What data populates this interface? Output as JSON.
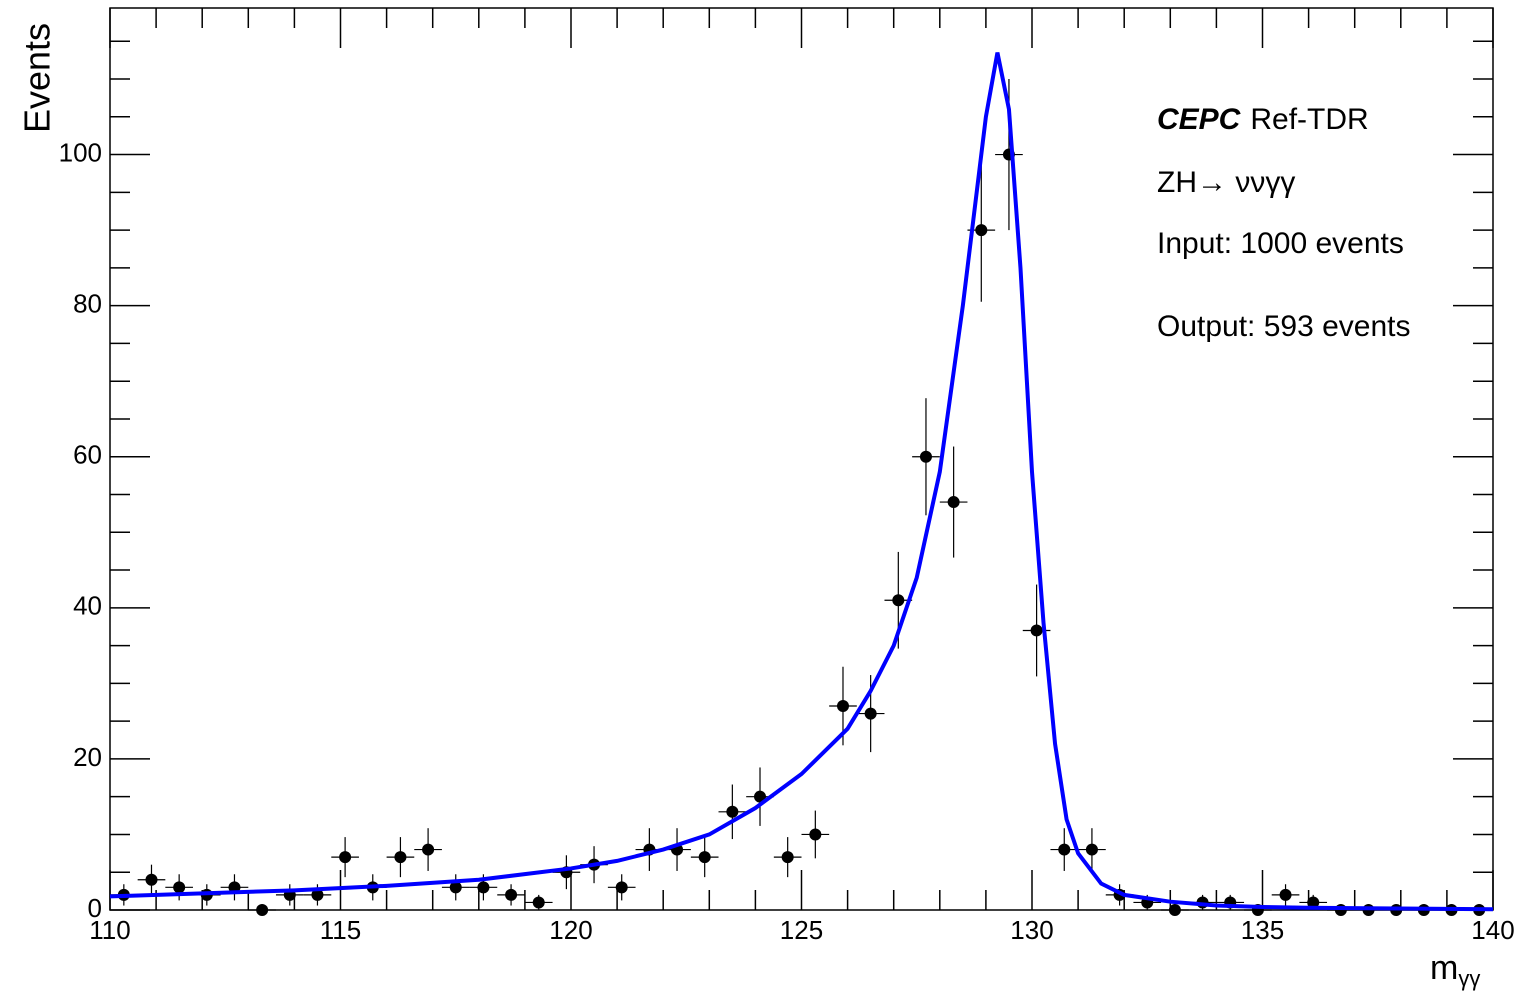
{
  "chart_data": {
    "type": "scatter",
    "ylabel": "Events",
    "xlabel": "m",
    "xlabel_sub": "γγ",
    "annotations": [
      {
        "bold": "CEPC",
        "text": "Ref-TDR"
      },
      {
        "text": "ZH→ ννγγ"
      },
      {
        "text": "Input: 1000 events"
      },
      {
        "text": "Output: 593 events"
      }
    ],
    "xlim": [
      110,
      140
    ],
    "ylim": [
      0,
      119.4
    ],
    "xticks": [
      110,
      115,
      120,
      125,
      130,
      135,
      140
    ],
    "xminorticks": [
      111,
      112,
      113,
      114,
      116,
      117,
      118,
      119,
      121,
      122,
      123,
      124,
      126,
      127,
      128,
      129,
      131,
      132,
      133,
      134,
      136,
      137,
      138,
      139
    ],
    "yticks": [
      0,
      20,
      40,
      60,
      80,
      100
    ],
    "yminorticks": [
      5,
      10,
      15,
      25,
      30,
      35,
      45,
      50,
      55,
      65,
      70,
      75,
      85,
      90,
      95,
      105,
      110,
      115
    ],
    "series": [
      {
        "type": "errorbar",
        "color": "#000000",
        "xerr": 0.3,
        "x": [
          110.3,
          110.9,
          111.5,
          112.1,
          112.7,
          113.3,
          113.9,
          114.5,
          115.1,
          115.7,
          116.3,
          116.9,
          117.5,
          118.1,
          118.7,
          119.3,
          119.9,
          120.5,
          121.1,
          121.7,
          122.3,
          122.9,
          123.5,
          124.1,
          124.7,
          125.3,
          125.9,
          126.5,
          127.1,
          127.7,
          128.3,
          128.9,
          129.5,
          130.1,
          130.7,
          131.3,
          131.9,
          132.5,
          133.1,
          133.7,
          134.3,
          134.9,
          135.5,
          136.1,
          136.7,
          137.3,
          137.9,
          138.5,
          139.1,
          139.7
        ],
        "values": [
          2,
          4,
          3,
          2,
          3,
          0,
          2,
          2,
          7,
          3,
          7,
          8,
          3,
          3,
          2,
          1,
          5,
          6,
          3,
          8,
          8,
          7,
          13,
          15,
          7,
          10,
          27,
          26,
          41,
          60,
          54,
          90,
          100,
          37,
          8,
          8,
          2,
          1,
          0,
          1,
          1,
          0,
          2,
          1,
          0,
          0,
          0,
          0,
          0,
          0
        ],
        "errors": [
          1.41,
          2,
          1.73,
          1.41,
          1.73,
          0,
          1.41,
          1.41,
          2.65,
          1.73,
          2.65,
          2.83,
          1.73,
          1.73,
          1.41,
          1,
          2.24,
          2.45,
          1.73,
          2.83,
          2.83,
          2.65,
          3.61,
          3.87,
          2.65,
          3.16,
          5.2,
          5.1,
          6.4,
          7.75,
          7.35,
          9.49,
          10,
          6.08,
          2.83,
          2.83,
          1.41,
          1,
          0,
          1,
          1,
          0,
          1.41,
          1,
          0,
          0,
          0,
          0,
          0,
          0
        ]
      },
      {
        "type": "line",
        "color": "#0000ff",
        "x": [
          110,
          112,
          114,
          116,
          118,
          120,
          121,
          122,
          123,
          124,
          125,
          126,
          126.5,
          127,
          127.5,
          128,
          128.5,
          129,
          129.25,
          129.5,
          129.75,
          130,
          130.25,
          130.5,
          130.75,
          131,
          131.5,
          132,
          133,
          134,
          135,
          136,
          138,
          140
        ],
        "values": [
          1.8,
          2.2,
          2.6,
          3.2,
          4.0,
          5.5,
          6.5,
          8,
          10,
          13.5,
          18,
          24,
          29,
          35,
          44,
          58,
          80,
          105,
          113.5,
          106,
          85,
          58,
          38,
          22,
          12,
          7.5,
          3.5,
          2,
          1.1,
          0.6,
          0.4,
          0.3,
          0.2,
          0.1
        ]
      }
    ]
  }
}
